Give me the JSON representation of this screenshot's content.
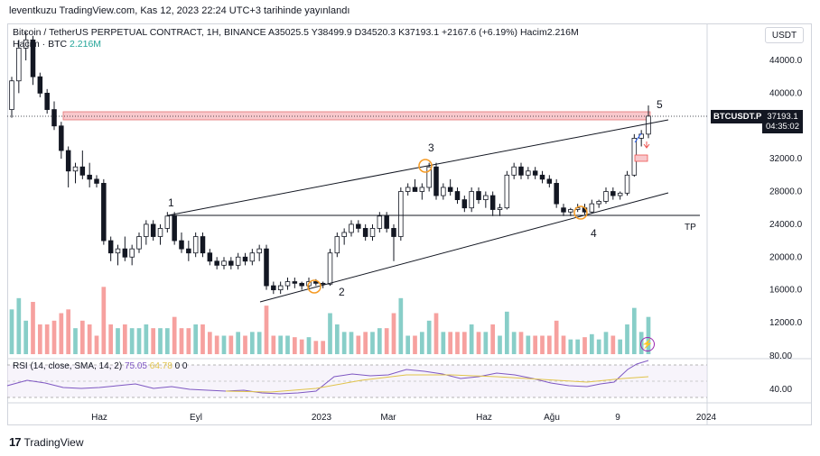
{
  "header": {
    "publish_text": "leventkuzu TradingView.com, Kas 12, 2023 22:24 UTC+3 tarihinde yayınlandı"
  },
  "legend": {
    "symbol_text": "Bitcoin / TetherUS PERPETUAL CONTRACT, 1H, BINANCE",
    "open": "A35025.5",
    "high": "Y38499.9",
    "low": "D34520.3",
    "close": "K37193.1",
    "change": "+2167.6 (+6.19%)",
    "volume": "Hacim2.216M",
    "vol_label": "Hacim · BTC",
    "vol_value": "2.216M"
  },
  "currency_button": "USDT",
  "price_axis": {
    "ticks": [
      "44000.0",
      "40000.0",
      "32000.0",
      "28000.0",
      "24000.0",
      "20000.0",
      "16000.0",
      "12000.0"
    ],
    "symbol_badge": "BTCUSDT.P",
    "last_price": "37193.1",
    "countdown": "04:35:02"
  },
  "time_axis": {
    "ticks": [
      "Haz",
      "Eyl",
      "2023",
      "Mar",
      "Haz",
      "Ağu",
      "9",
      "2024"
    ]
  },
  "annotations": {
    "wave_labels": [
      "1",
      "2",
      "3",
      "4",
      "5"
    ],
    "tp_label": "TP"
  },
  "rsi": {
    "legend_prefix": "RSI (14, close, SMA, 14, 2)",
    "value": "75.05",
    "sma_value": "64.78",
    "extra": "0  0",
    "ticks": [
      "80.00",
      "40.00"
    ]
  },
  "footer": {
    "brand": "TradingView"
  },
  "colors": {
    "up": "#26a69a",
    "down": "#ef5350",
    "candle_up_body": "#ffffff",
    "candle_outline": "#131722",
    "rsi_line": "#7e57c2",
    "rsi_sma": "#e0c34a",
    "resistance_zone": "#f8c8cc"
  },
  "chart_data": {
    "type": "candlestick",
    "title": "Bitcoin / TetherUS PERPETUAL CONTRACT, 1H, BINANCE",
    "ylim": [
      9000,
      48000
    ],
    "candles": [
      [
        38000,
        42000,
        37000,
        41500
      ],
      [
        41500,
        46500,
        40000,
        45500
      ],
      [
        45500,
        47500,
        44000,
        46500
      ],
      [
        46500,
        47000,
        41000,
        42000
      ],
      [
        42000,
        42500,
        39500,
        40000
      ],
      [
        40000,
        40500,
        37500,
        38000
      ],
      [
        38000,
        39000,
        35500,
        36000
      ],
      [
        36000,
        36500,
        32000,
        33000
      ],
      [
        33000,
        33500,
        28500,
        30500
      ],
      [
        30500,
        31500,
        29000,
        31000
      ],
      [
        31000,
        33000,
        29500,
        30000
      ],
      [
        30000,
        31500,
        28500,
        29500
      ],
      [
        29500,
        30000,
        28500,
        29000
      ],
      [
        29000,
        29500,
        21500,
        22000
      ],
      [
        22000,
        22500,
        19500,
        20500
      ],
      [
        20500,
        21500,
        19000,
        21000
      ],
      [
        21000,
        22500,
        19500,
        20000
      ],
      [
        20000,
        21500,
        19000,
        21000
      ],
      [
        21000,
        23000,
        20500,
        22500
      ],
      [
        22500,
        24500,
        21500,
        24000
      ],
      [
        24000,
        24500,
        22000,
        22500
      ],
      [
        22500,
        24000,
        21500,
        23500
      ],
      [
        23500,
        25500,
        23000,
        25000
      ],
      [
        25000,
        25500,
        21500,
        22000
      ],
      [
        22000,
        23000,
        20500,
        21000
      ],
      [
        21000,
        22000,
        19500,
        20500
      ],
      [
        20500,
        23000,
        20000,
        22500
      ],
      [
        22500,
        23000,
        20000,
        20500
      ],
      [
        20500,
        21000,
        19000,
        19500
      ],
      [
        19500,
        20000,
        18500,
        19000
      ],
      [
        19000,
        20000,
        18500,
        19500
      ],
      [
        19500,
        20000,
        18500,
        19000
      ],
      [
        19000,
        20500,
        18500,
        20000
      ],
      [
        20000,
        20500,
        19000,
        19500
      ],
      [
        19500,
        21000,
        19000,
        20500
      ],
      [
        20500,
        21500,
        19500,
        21000
      ],
      [
        21000,
        21500,
        16000,
        16500
      ],
      [
        16500,
        17000,
        15500,
        16000
      ],
      [
        16000,
        17000,
        15500,
        16500
      ],
      [
        16500,
        17500,
        16000,
        17000
      ],
      [
        17000,
        17500,
        16200,
        16800
      ],
      [
        16800,
        17000,
        16000,
        16500
      ],
      [
        16500,
        17500,
        16200,
        17000
      ],
      [
        17000,
        17300,
        16500,
        16800
      ],
      [
        16800,
        17000,
        16200,
        16700
      ],
      [
        16700,
        21000,
        16500,
        20500
      ],
      [
        20500,
        23000,
        20000,
        22500
      ],
      [
        22500,
        23500,
        21500,
        23000
      ],
      [
        23000,
        24500,
        22500,
        24000
      ],
      [
        24000,
        24500,
        23000,
        23500
      ],
      [
        23500,
        24000,
        22000,
        22500
      ],
      [
        22500,
        24000,
        22000,
        23500
      ],
      [
        23500,
        25500,
        23000,
        25000
      ],
      [
        25000,
        25500,
        23000,
        23500
      ],
      [
        23500,
        24000,
        19500,
        22500
      ],
      [
        22500,
        28500,
        22000,
        28000
      ],
      [
        28000,
        29000,
        27500,
        28500
      ],
      [
        28500,
        29500,
        28000,
        28000
      ],
      [
        28000,
        29000,
        27000,
        28500
      ],
      [
        28500,
        31500,
        28000,
        31000
      ],
      [
        31000,
        31500,
        27000,
        27500
      ],
      [
        27500,
        29000,
        27000,
        28500
      ],
      [
        28500,
        29500,
        27500,
        28000
      ],
      [
        28000,
        28500,
        26500,
        27000
      ],
      [
        27000,
        27500,
        25500,
        26000
      ],
      [
        26000,
        28500,
        25500,
        28000
      ],
      [
        28000,
        28500,
        26500,
        27000
      ],
      [
        27000,
        28000,
        26000,
        27500
      ],
      [
        27500,
        28000,
        25000,
        25800
      ],
      [
        25800,
        26500,
        25000,
        26000
      ],
      [
        26000,
        30500,
        25800,
        30000
      ],
      [
        30000,
        31500,
        29500,
        31000
      ],
      [
        31000,
        31500,
        29500,
        30000
      ],
      [
        30000,
        31000,
        29500,
        30500
      ],
      [
        30500,
        31000,
        29500,
        30000
      ],
      [
        30000,
        30500,
        29000,
        29500
      ],
      [
        29500,
        30000,
        28500,
        29000
      ],
      [
        29000,
        29500,
        26000,
        26500
      ],
      [
        26000,
        26500,
        25000,
        25500
      ],
      [
        25500,
        26000,
        25000,
        25800
      ],
      [
        25800,
        26500,
        25500,
        26000
      ],
      [
        26000,
        26500,
        25200,
        25500
      ],
      [
        25500,
        27000,
        25300,
        26500
      ],
      [
        26500,
        27000,
        26000,
        26800
      ],
      [
        26800,
        28500,
        26500,
        28000
      ],
      [
        28000,
        28500,
        27000,
        27500
      ],
      [
        27500,
        28000,
        27000,
        27800
      ],
      [
        27800,
        30500,
        27500,
        30000
      ],
      [
        30000,
        35000,
        29800,
        34500
      ],
      [
        34500,
        35500,
        33500,
        35000
      ],
      [
        35000,
        38500,
        34500,
        37193
      ]
    ],
    "volume_unit": "BTC",
    "last_volume": "2.216M",
    "rsi": {
      "value": 75.05,
      "sma": 64.78,
      "levels": [
        70,
        30
      ]
    }
  }
}
